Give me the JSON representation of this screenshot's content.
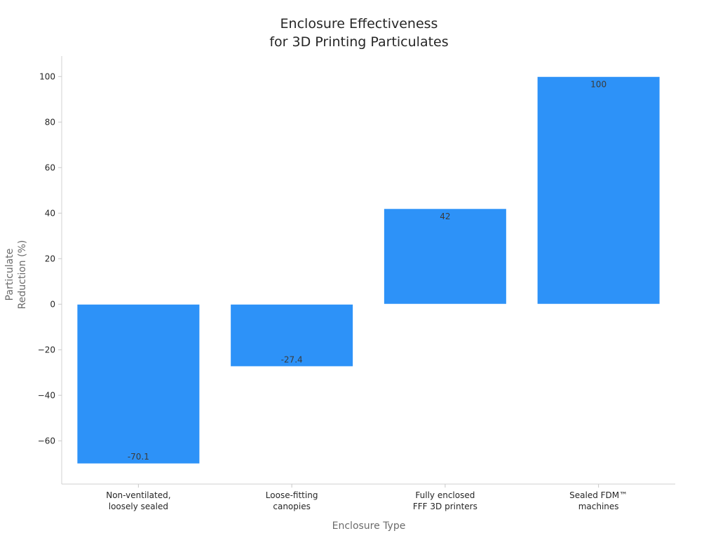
{
  "chart_data": {
    "type": "bar",
    "title": [
      "Enclosure Effectiveness",
      "for 3D Printing Particulates"
    ],
    "xlabel": "Enclosure Type",
    "ylabel": [
      "Particulate",
      "Reduction (%)"
    ],
    "categories": [
      [
        "Non-ventilated,",
        "loosely sealed"
      ],
      [
        "Loose-fitting",
        "canopies"
      ],
      [
        "Fully enclosed",
        "FFF 3D printers"
      ],
      [
        "Sealed FDM™",
        "machines"
      ]
    ],
    "values": [
      -70.1,
      -27.4,
      42,
      100
    ],
    "data_labels": [
      "-70.1",
      "-27.4",
      "42",
      "100"
    ],
    "ylim": [
      -79,
      109
    ],
    "yticks": [
      -60,
      -40,
      -20,
      0,
      20,
      40,
      60,
      80,
      100
    ],
    "ytick_labels": [
      "−60",
      "−40",
      "−20",
      "0",
      "20",
      "40",
      "60",
      "80",
      "100"
    ],
    "bar_color": "#2d92f8",
    "grid": false,
    "legend": "none"
  }
}
